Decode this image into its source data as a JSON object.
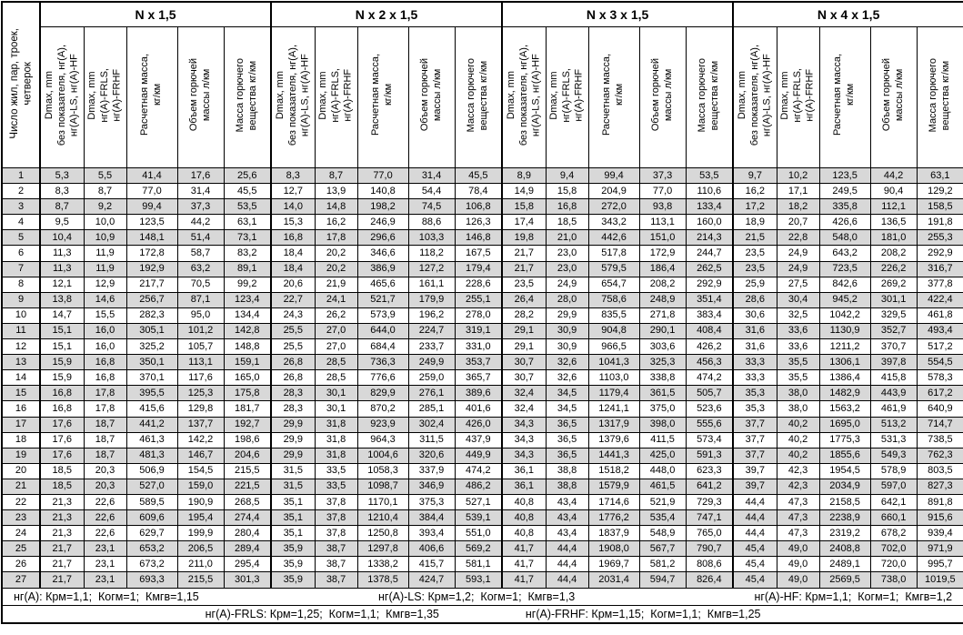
{
  "header": {
    "corner": "Число жил, пар, троек,\nчетверок",
    "groups": [
      "N x 1,5",
      "N x 2 x 1,5",
      "N x 3 x 1,5",
      "N x 4 x 1,5"
    ],
    "sub": [
      "Dmax, mm\nбез показателя, нг(А),\nнг(А)-LS, нг(А)-HF",
      "Dmax, mm\nнг(А)-FRLS,\nнг(А)-FRHF",
      "Расчетная масса,\nкг/км",
      "Объем горючей\nмассы л/км",
      "Масса горючего\nвещества кг/км"
    ]
  },
  "table": {
    "rows": [
      [
        "1",
        "5,3",
        "5,5",
        "41,4",
        "17,6",
        "25,6",
        "8,3",
        "8,7",
        "77,0",
        "31,4",
        "45,5",
        "8,9",
        "9,4",
        "99,4",
        "37,3",
        "53,5",
        "9,7",
        "10,2",
        "123,5",
        "44,2",
        "63,1"
      ],
      [
        "2",
        "8,3",
        "8,7",
        "77,0",
        "31,4",
        "45,5",
        "12,7",
        "13,9",
        "140,8",
        "54,4",
        "78,4",
        "14,9",
        "15,8",
        "204,9",
        "77,0",
        "110,6",
        "16,2",
        "17,1",
        "249,5",
        "90,4",
        "129,2"
      ],
      [
        "3",
        "8,7",
        "9,2",
        "99,4",
        "37,3",
        "53,5",
        "14,0",
        "14,8",
        "198,2",
        "74,5",
        "106,8",
        "15,8",
        "16,8",
        "272,0",
        "93,8",
        "133,4",
        "17,2",
        "18,2",
        "335,8",
        "112,1",
        "158,5"
      ],
      [
        "4",
        "9,5",
        "10,0",
        "123,5",
        "44,2",
        "63,1",
        "15,3",
        "16,2",
        "246,9",
        "88,6",
        "126,3",
        "17,4",
        "18,5",
        "343,2",
        "113,1",
        "160,0",
        "18,9",
        "20,7",
        "426,6",
        "136,5",
        "191,8"
      ],
      [
        "5",
        "10,4",
        "10,9",
        "148,1",
        "51,4",
        "73,1",
        "16,8",
        "17,8",
        "296,6",
        "103,3",
        "146,8",
        "19,8",
        "21,0",
        "442,6",
        "151,0",
        "214,3",
        "21,5",
        "22,8",
        "548,0",
        "181,0",
        "255,3"
      ],
      [
        "6",
        "11,3",
        "11,9",
        "172,8",
        "58,7",
        "83,2",
        "18,4",
        "20,2",
        "346,6",
        "118,2",
        "167,5",
        "21,7",
        "23,0",
        "517,8",
        "172,9",
        "244,7",
        "23,5",
        "24,9",
        "643,2",
        "208,2",
        "292,9"
      ],
      [
        "7",
        "11,3",
        "11,9",
        "192,9",
        "63,2",
        "89,1",
        "18,4",
        "20,2",
        "386,9",
        "127,2",
        "179,4",
        "21,7",
        "23,0",
        "579,5",
        "186,4",
        "262,5",
        "23,5",
        "24,9",
        "723,5",
        "226,2",
        "316,7"
      ],
      [
        "8",
        "12,1",
        "12,9",
        "217,7",
        "70,5",
        "99,2",
        "20,6",
        "21,9",
        "465,6",
        "161,1",
        "228,6",
        "23,5",
        "24,9",
        "654,7",
        "208,2",
        "292,9",
        "25,9",
        "27,5",
        "842,6",
        "269,2",
        "377,8"
      ],
      [
        "9",
        "13,8",
        "14,6",
        "256,7",
        "87,1",
        "123,4",
        "22,7",
        "24,1",
        "521,7",
        "179,9",
        "255,1",
        "26,4",
        "28,0",
        "758,6",
        "248,9",
        "351,4",
        "28,6",
        "30,4",
        "945,2",
        "301,1",
        "422,4"
      ],
      [
        "10",
        "14,7",
        "15,5",
        "282,3",
        "95,0",
        "134,4",
        "24,3",
        "26,2",
        "573,9",
        "196,2",
        "278,0",
        "28,2",
        "29,9",
        "835,5",
        "271,8",
        "383,4",
        "30,6",
        "32,5",
        "1042,2",
        "329,5",
        "461,8"
      ],
      [
        "11",
        "15,1",
        "16,0",
        "305,1",
        "101,2",
        "142,8",
        "25,5",
        "27,0",
        "644,0",
        "224,7",
        "319,1",
        "29,1",
        "30,9",
        "904,8",
        "290,1",
        "408,4",
        "31,6",
        "33,6",
        "1130,9",
        "352,7",
        "493,4"
      ],
      [
        "12",
        "15,1",
        "16,0",
        "325,2",
        "105,7",
        "148,8",
        "25,5",
        "27,0",
        "684,4",
        "233,7",
        "331,0",
        "29,1",
        "30,9",
        "966,5",
        "303,6",
        "426,2",
        "31,6",
        "33,6",
        "1211,2",
        "370,7",
        "517,2"
      ],
      [
        "13",
        "15,9",
        "16,8",
        "350,1",
        "113,1",
        "159,1",
        "26,8",
        "28,5",
        "736,3",
        "249,9",
        "353,7",
        "30,7",
        "32,6",
        "1041,3",
        "325,3",
        "456,3",
        "33,3",
        "35,5",
        "1306,1",
        "397,8",
        "554,5"
      ],
      [
        "14",
        "15,9",
        "16,8",
        "370,1",
        "117,6",
        "165,0",
        "26,8",
        "28,5",
        "776,6",
        "259,0",
        "365,7",
        "30,7",
        "32,6",
        "1103,0",
        "338,8",
        "474,2",
        "33,3",
        "35,5",
        "1386,4",
        "415,8",
        "578,3"
      ],
      [
        "15",
        "16,8",
        "17,8",
        "395,5",
        "125,3",
        "175,8",
        "28,3",
        "30,1",
        "829,9",
        "276,1",
        "389,6",
        "32,4",
        "34,5",
        "1179,4",
        "361,5",
        "505,7",
        "35,3",
        "38,0",
        "1482,9",
        "443,9",
        "617,2"
      ],
      [
        "16",
        "16,8",
        "17,8",
        "415,6",
        "129,8",
        "181,7",
        "28,3",
        "30,1",
        "870,2",
        "285,1",
        "401,6",
        "32,4",
        "34,5",
        "1241,1",
        "375,0",
        "523,6",
        "35,3",
        "38,0",
        "1563,2",
        "461,9",
        "640,9"
      ],
      [
        "17",
        "17,6",
        "18,7",
        "441,2",
        "137,7",
        "192,7",
        "29,9",
        "31,8",
        "923,9",
        "302,4",
        "426,0",
        "34,3",
        "36,5",
        "1317,9",
        "398,0",
        "555,6",
        "37,7",
        "40,2",
        "1695,0",
        "513,2",
        "714,7"
      ],
      [
        "18",
        "17,6",
        "18,7",
        "461,3",
        "142,2",
        "198,6",
        "29,9",
        "31,8",
        "964,3",
        "311,5",
        "437,9",
        "34,3",
        "36,5",
        "1379,6",
        "411,5",
        "573,4",
        "37,7",
        "40,2",
        "1775,3",
        "531,3",
        "738,5"
      ],
      [
        "19",
        "17,6",
        "18,7",
        "481,3",
        "146,7",
        "204,6",
        "29,9",
        "31,8",
        "1004,6",
        "320,6",
        "449,9",
        "34,3",
        "36,5",
        "1441,3",
        "425,0",
        "591,3",
        "37,7",
        "40,2",
        "1855,6",
        "549,3",
        "762,3"
      ],
      [
        "20",
        "18,5",
        "20,3",
        "506,9",
        "154,5",
        "215,5",
        "31,5",
        "33,5",
        "1058,3",
        "337,9",
        "474,2",
        "36,1",
        "38,8",
        "1518,2",
        "448,0",
        "623,3",
        "39,7",
        "42,3",
        "1954,5",
        "578,9",
        "803,5"
      ],
      [
        "21",
        "18,5",
        "20,3",
        "527,0",
        "159,0",
        "221,5",
        "31,5",
        "33,5",
        "1098,7",
        "346,9",
        "486,2",
        "36,1",
        "38,8",
        "1579,9",
        "461,5",
        "641,2",
        "39,7",
        "42,3",
        "2034,9",
        "597,0",
        "827,3"
      ],
      [
        "22",
        "21,3",
        "22,6",
        "589,5",
        "190,9",
        "268,5",
        "35,1",
        "37,8",
        "1170,1",
        "375,3",
        "527,1",
        "40,8",
        "43,4",
        "1714,6",
        "521,9",
        "729,3",
        "44,4",
        "47,3",
        "2158,5",
        "642,1",
        "891,8"
      ],
      [
        "23",
        "21,3",
        "22,6",
        "609,6",
        "195,4",
        "274,4",
        "35,1",
        "37,8",
        "1210,4",
        "384,4",
        "539,1",
        "40,8",
        "43,4",
        "1776,2",
        "535,4",
        "747,1",
        "44,4",
        "47,3",
        "2238,9",
        "660,1",
        "915,6"
      ],
      [
        "24",
        "21,3",
        "22,6",
        "629,7",
        "199,9",
        "280,4",
        "35,1",
        "37,8",
        "1250,8",
        "393,4",
        "551,0",
        "40,8",
        "43,4",
        "1837,9",
        "548,9",
        "765,0",
        "44,4",
        "47,3",
        "2319,2",
        "678,2",
        "939,4"
      ],
      [
        "25",
        "21,7",
        "23,1",
        "653,2",
        "206,5",
        "289,4",
        "35,9",
        "38,7",
        "1297,8",
        "406,6",
        "569,2",
        "41,7",
        "44,4",
        "1908,0",
        "567,7",
        "790,7",
        "45,4",
        "49,0",
        "2408,8",
        "702,0",
        "971,9"
      ],
      [
        "26",
        "21,7",
        "23,1",
        "673,2",
        "211,0",
        "295,4",
        "35,9",
        "38,7",
        "1338,2",
        "415,7",
        "581,1",
        "41,7",
        "44,4",
        "1969,7",
        "581,2",
        "808,6",
        "45,4",
        "49,0",
        "2489,1",
        "720,0",
        "995,7"
      ],
      [
        "27",
        "21,7",
        "23,1",
        "693,3",
        "215,5",
        "301,3",
        "35,9",
        "38,7",
        "1378,5",
        "424,7",
        "593,1",
        "41,7",
        "44,4",
        "2031,4",
        "594,7",
        "826,4",
        "45,4",
        "49,0",
        "2569,5",
        "738,0",
        "1019,5"
      ]
    ]
  },
  "footnotes": {
    "line1": [
      "нг(А): Крм=1,1;  Когм=1;  Кмгв=1,15",
      "нг(А)-LS: Крм=1,2;  Когм=1;  Кмгв=1,3",
      "нг(А)-HF: Крм=1,1;  Когм=1;  Кмгв=1,2"
    ],
    "line2": [
      "нг(А)-FRLS: Крм=1,25;  Когм=1,1;  Кмгв=1,35",
      "нг(А)-FRHF: Крм=1,15;  Когм=1,1;  Кмгв=1,25"
    ]
  },
  "colors": {
    "band": "#d8d8d8",
    "border": "#000000",
    "text": "#000000",
    "background": "#ffffff"
  }
}
